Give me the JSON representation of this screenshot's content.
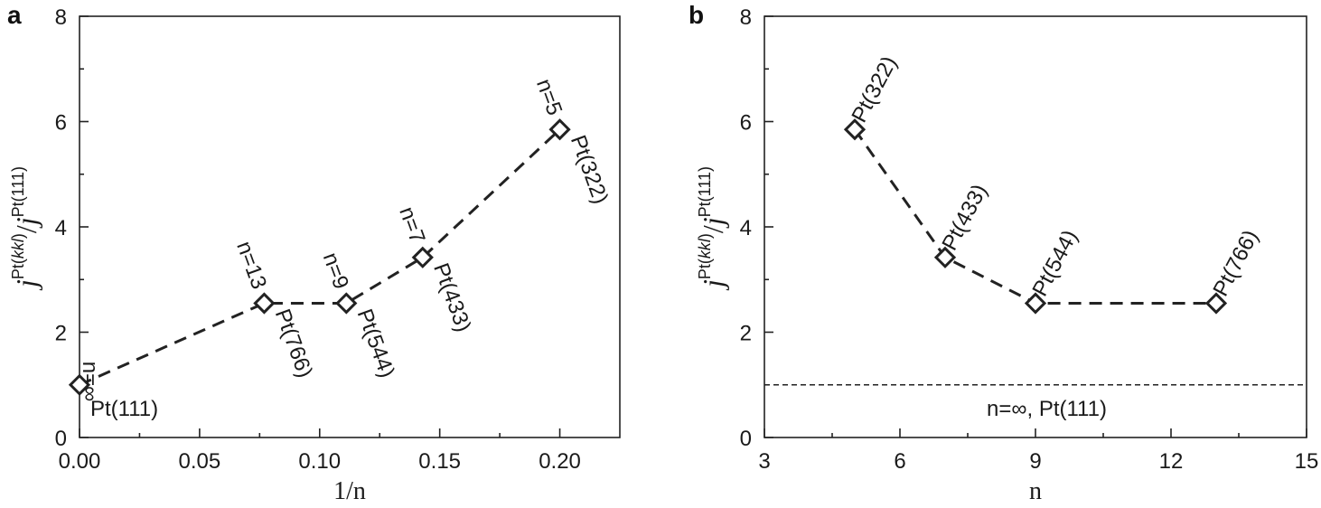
{
  "chart_data": [
    {
      "panel": "a",
      "type": "line",
      "xlabel": "1/n",
      "ylabel": {
        "j": "j",
        "k": "k",
        "num": "Pt(",
        "num_hkl": "kkl",
        "num_close": ")",
        "sep": "/",
        "den": "Pt(111)"
      },
      "xlim": [
        0,
        0.225
      ],
      "ylim": [
        0,
        8
      ],
      "xticks": [
        "0.00",
        "0.05",
        "0.10",
        "0.15",
        "0.20"
      ],
      "xtick_values": [
        0.0,
        0.05,
        0.1,
        0.15,
        0.2
      ],
      "yticks": [
        "0",
        "2",
        "4",
        "6",
        "8"
      ],
      "ytick_values": [
        0,
        2,
        4,
        6,
        8
      ],
      "points": [
        {
          "x": 0.0,
          "y": 1.0,
          "n_label": "n=∞",
          "pt_label": "Pt(111)"
        },
        {
          "x": 0.0769,
          "y": 2.55,
          "n_label": "n=13",
          "pt_label": "Pt(766)"
        },
        {
          "x": 0.1111,
          "y": 2.55,
          "n_label": "n=9",
          "pt_label": "Pt(544)"
        },
        {
          "x": 0.1429,
          "y": 3.42,
          "n_label": "n=7",
          "pt_label": "Pt(433)"
        },
        {
          "x": 0.2,
          "y": 5.85,
          "n_label": "n=5",
          "pt_label": "Pt(322)"
        }
      ]
    },
    {
      "panel": "b",
      "type": "line",
      "xlabel": "n",
      "ylabel": {
        "j": "j",
        "k": "k",
        "num": "Pt(",
        "num_hkl": "kkl",
        "num_close": ")",
        "sep": "/",
        "den": "Pt(111)"
      },
      "xlim": [
        3,
        15
      ],
      "ylim": [
        0,
        8
      ],
      "xticks": [
        "3",
        "6",
        "9",
        "12",
        "15"
      ],
      "xtick_values": [
        3,
        6,
        9,
        12,
        15
      ],
      "yticks": [
        "0",
        "2",
        "4",
        "6",
        "8"
      ],
      "ytick_values": [
        0,
        2,
        4,
        6,
        8
      ],
      "points": [
        {
          "x": 5,
          "y": 5.85,
          "pt_label": "Pt(322)"
        },
        {
          "x": 7,
          "y": 3.42,
          "pt_label": "Pt(433)"
        },
        {
          "x": 9,
          "y": 2.55,
          "pt_label": "Pt(544)"
        },
        {
          "x": 13,
          "y": 2.55,
          "pt_label": "Pt(766)"
        }
      ],
      "reference_line": {
        "y": 1.0,
        "label": "n=∞, Pt(111)"
      }
    }
  ]
}
